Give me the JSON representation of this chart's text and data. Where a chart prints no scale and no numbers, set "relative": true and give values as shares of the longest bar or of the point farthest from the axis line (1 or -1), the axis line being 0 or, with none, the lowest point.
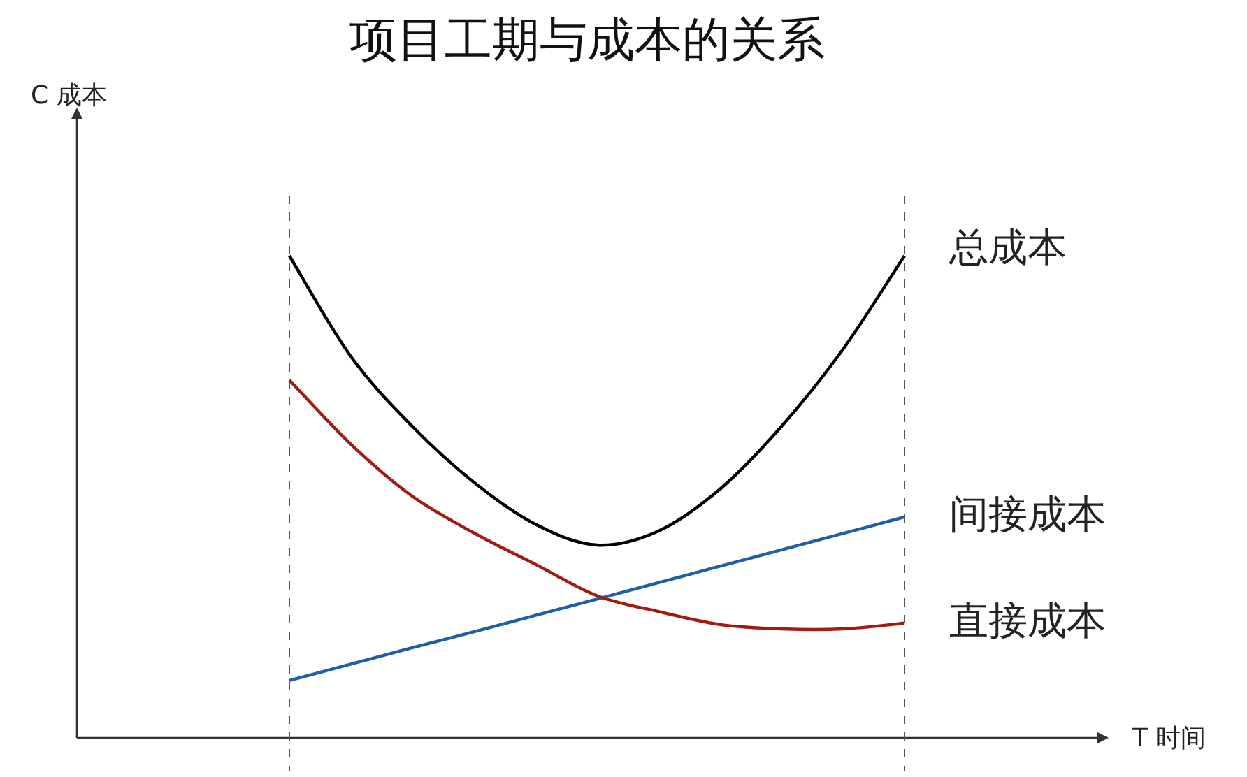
{
  "chart_data": {
    "type": "line",
    "title": "项目工期与成本的关系",
    "annotations": [
      "T 时间",
      "C 成本"
    ],
    "relative": true,
    "legend": false,
    "marker": "none",
    "line_style": "solid",
    "categories": [
      null,
      null,
      null,
      null,
      null,
      null,
      null,
      null,
      null,
      null,
      null
    ],
    "series": [
      {
        "name": "总成本",
        "color": "#000000",
        "values": [
          1,
          0.791,
          0.646,
          0.53,
          0.443,
          0.4,
          0.429,
          0.516,
          0.646,
          0.806,
          1
        ]
      },
      {
        "name": "间接成本",
        "color": "#1f5fa8",
        "values": [
          0.119,
          0.153,
          0.187,
          0.22,
          0.254,
          0.288,
          0.322,
          0.356,
          0.39,
          0.424,
          0.458
        ]
      },
      {
        "name": "直接成本",
        "color": "#a31a0e",
        "values": [
          0.742,
          0.609,
          0.501,
          0.425,
          0.36,
          0.295,
          0.262,
          0.235,
          0.226,
          0.226,
          0.238
        ]
      }
    ]
  }
}
